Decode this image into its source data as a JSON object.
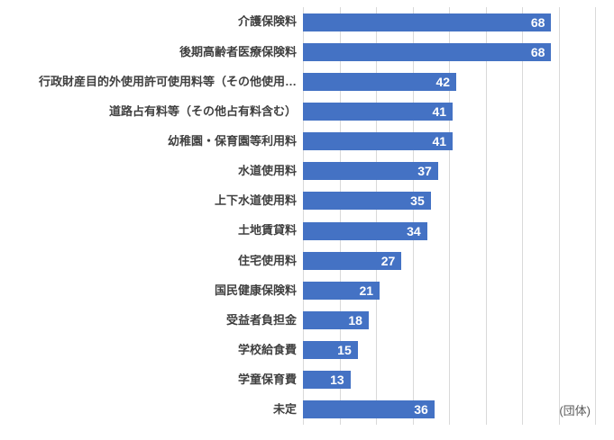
{
  "chart_data": {
    "type": "bar",
    "orientation": "horizontal",
    "title": "",
    "xlabel": "",
    "ylabel": "",
    "unit_label": "(団体)",
    "categories": [
      "介護保険料",
      "後期高齢者医療保険料",
      "行政財産目的外使用許可使用料等（その他使用…",
      "道路占有料等（その他占有料含む）",
      "幼稚園・保育園等利用料",
      "水道使用料",
      "上下水道使用料",
      "土地賃貸料",
      "住宅使用料",
      "国民健康保険料",
      "受益者負担金",
      "学校給食費",
      "学童保育費",
      "未定"
    ],
    "values": [
      68,
      68,
      42,
      41,
      41,
      37,
      35,
      34,
      27,
      21,
      18,
      15,
      13,
      36
    ],
    "xlim": [
      0,
      80
    ],
    "grid": true,
    "gridline_interval": 10,
    "legend": "none",
    "colors": {
      "bar": "#4472c4",
      "value_label": "#ffffff",
      "category_label": "#404040",
      "gridline": "#d9d9d9"
    }
  }
}
